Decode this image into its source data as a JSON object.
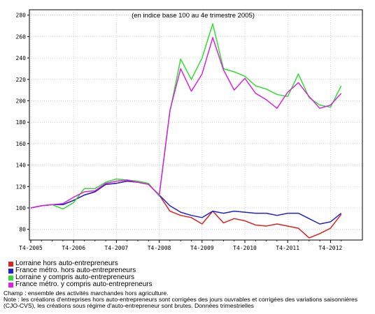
{
  "chart_data": {
    "type": "line",
    "subtitle": "(en indice base 100 au 4e trimestre 2005)",
    "x_labels": [
      "T4-2005",
      "T4-2006",
      "T4-2007",
      "T4-2008",
      "T4-2009",
      "T4-2010",
      "T4-2011",
      "T4-2012"
    ],
    "ylim": [
      70,
      285
    ],
    "yticks": [
      80,
      100,
      120,
      140,
      160,
      180,
      200,
      220,
      240,
      260,
      280
    ],
    "grid": true,
    "legend_position": "bottom-left",
    "series": [
      {
        "name": "Lorraine hors auto-entrepreneurs",
        "color": "#dd2222",
        "values": [
          100,
          102,
          103,
          103,
          107,
          112,
          115,
          122,
          123,
          125,
          124,
          122,
          112,
          97,
          93,
          91,
          85,
          97,
          86,
          90,
          88,
          84,
          83,
          85,
          83,
          81,
          72,
          76,
          81,
          94
        ]
      },
      {
        "name": "France métro. hors auto-entrepreneurs",
        "color": "#2222cc",
        "values": [
          100,
          102,
          103,
          103,
          107,
          112,
          115,
          122,
          123,
          125,
          124,
          122,
          112,
          102,
          96,
          93,
          91,
          97,
          95,
          97,
          96,
          95,
          95,
          93,
          95,
          95,
          90,
          85,
          87,
          95
        ]
      },
      {
        "name": "Lorraine y compris auto-entrepreneurs",
        "color": "#33dd33",
        "values": [
          100,
          102,
          103,
          99,
          105,
          118,
          118,
          124,
          127,
          126,
          125,
          123,
          111,
          190,
          239,
          220,
          240,
          272,
          230,
          227,
          223,
          214,
          211,
          206,
          204,
          225,
          203,
          196,
          194,
          214
        ]
      },
      {
        "name": "France métro. y compris auto-entrepreneurs",
        "color": "#dd22dd",
        "values": [
          100,
          102,
          103,
          104,
          110,
          115,
          116,
          123,
          125,
          126,
          124,
          122,
          112,
          191,
          230,
          209,
          225,
          259,
          229,
          210,
          221,
          207,
          201,
          193,
          208,
          217,
          204,
          193,
          196,
          207
        ]
      }
    ]
  },
  "notes": {
    "champ": "Champ : ensemble des activités marchandes hors agriculture.",
    "note": "Note : les créations d'entreprises hors auto-entrepreneurs sont corrigées des jours ouvrables et corrigées des variations saisonnières (CJO-CVS), les créations sous régime d'auto-entrepreneur sont brutes. Données trimestrielles"
  }
}
